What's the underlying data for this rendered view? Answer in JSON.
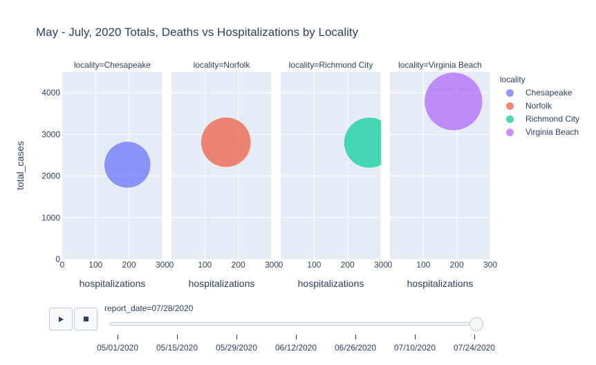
{
  "chart_data": {
    "type": "scatter",
    "title": "May - July, 2020 Totals, Deaths vs Hospitalizations by Locality",
    "xlabel": "hospitalizations",
    "ylabel": "total_cases",
    "xlim": [
      0,
      300
    ],
    "ylim": [
      0,
      4500
    ],
    "xticks": [
      "0",
      "100",
      "200",
      "300"
    ],
    "yticks": [
      "0",
      "1000",
      "2000",
      "3000",
      "4000"
    ],
    "grid": true,
    "legend_title": "locality",
    "legend_position": "right",
    "facets": [
      {
        "label": "locality=Chesapeake",
        "name": "Chesapeake",
        "color": "#636efa",
        "x": 195,
        "y": 2270,
        "size_rel": 0.64
      },
      {
        "label": "locality=Norfolk",
        "name": "Norfolk",
        "color": "#ef553b",
        "x": 163,
        "y": 2810,
        "size_rel": 0.74
      },
      {
        "label": "locality=Richmond City",
        "name": "Richmond City",
        "color": "#00cc96",
        "x": 265,
        "y": 2800,
        "size_rel": 0.76
      },
      {
        "label": "locality=Virginia Beach",
        "name": "Virginia Beach",
        "color": "#ab63fa",
        "x": 190,
        "y": 3790,
        "size_rel": 1.0
      }
    ]
  },
  "animation": {
    "play_icon": "play-icon",
    "stop_icon": "stop-icon",
    "current_label": "report_date=07/28/2020",
    "progress": 1.0,
    "dates": [
      "05/01/2020",
      "05/15/2020",
      "05/29/2020",
      "06/12/2020",
      "06/26/2020",
      "07/10/2020",
      "07/24/2020"
    ]
  }
}
